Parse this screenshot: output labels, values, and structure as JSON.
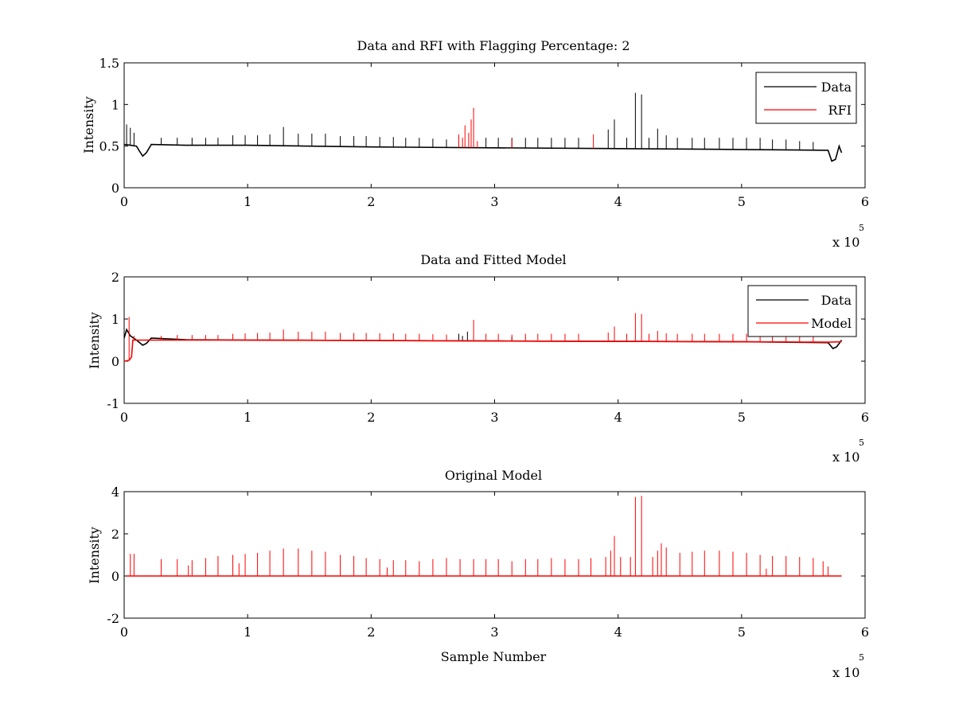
{
  "chart_data": [
    {
      "type": "line",
      "title": "Data and RFI with Flagging Percentage: 2",
      "xlabel": "",
      "ylabel": "Intensity",
      "xlim": [
        0,
        6
      ],
      "ylim": [
        0,
        1.5
      ],
      "x_ticks": [
        "0",
        "1",
        "2",
        "3",
        "4",
        "5",
        "6"
      ],
      "y_ticks": [
        "0",
        "0.5",
        "1",
        "1.5"
      ],
      "x_multiplier": "x 10",
      "x_multiplier_exp": "5",
      "grid": false,
      "legend": "top-right",
      "colors": {
        "Data": "#000000",
        "RFI": "#ff0000"
      },
      "series": [
        {
          "name": "Data",
          "baseline": [
            [
              0,
              0.52
            ],
            [
              0.05,
              0.51
            ],
            [
              0.1,
              0.5
            ],
            [
              0.12,
              0.45
            ],
            [
              0.15,
              0.38
            ],
            [
              0.18,
              0.42
            ],
            [
              0.22,
              0.52
            ],
            [
              0.5,
              0.51
            ],
            [
              1.0,
              0.51
            ],
            [
              2.0,
              0.49
            ],
            [
              3.0,
              0.48
            ],
            [
              4.0,
              0.47
            ],
            [
              5.0,
              0.46
            ],
            [
              5.7,
              0.45
            ],
            [
              5.73,
              0.32
            ],
            [
              5.76,
              0.34
            ],
            [
              5.79,
              0.5
            ],
            [
              5.81,
              0.42
            ]
          ],
          "spikes": [
            [
              0.02,
              0.76
            ],
            [
              0.05,
              0.72
            ],
            [
              0.08,
              0.66
            ],
            [
              0.3,
              0.6
            ],
            [
              0.43,
              0.6
            ],
            [
              0.55,
              0.6
            ],
            [
              0.66,
              0.6
            ],
            [
              0.76,
              0.6
            ],
            [
              0.88,
              0.63
            ],
            [
              0.98,
              0.63
            ],
            [
              1.08,
              0.63
            ],
            [
              1.18,
              0.64
            ],
            [
              1.29,
              0.73
            ],
            [
              1.41,
              0.65
            ],
            [
              1.52,
              0.65
            ],
            [
              1.63,
              0.65
            ],
            [
              1.75,
              0.62
            ],
            [
              1.86,
              0.62
            ],
            [
              1.96,
              0.62
            ],
            [
              2.07,
              0.61
            ],
            [
              2.18,
              0.61
            ],
            [
              2.28,
              0.6
            ],
            [
              2.39,
              0.6
            ],
            [
              2.5,
              0.59
            ],
            [
              2.61,
              0.58
            ],
            [
              2.93,
              0.6
            ],
            [
              3.03,
              0.6
            ],
            [
              3.14,
              0.6
            ],
            [
              3.25,
              0.6
            ],
            [
              3.35,
              0.6
            ],
            [
              3.46,
              0.6
            ],
            [
              3.57,
              0.6
            ],
            [
              3.68,
              0.6
            ],
            [
              3.92,
              0.7
            ],
            [
              3.97,
              0.82
            ],
            [
              4.07,
              0.6
            ],
            [
              4.14,
              1.14
            ],
            [
              4.19,
              1.12
            ],
            [
              4.25,
              0.6
            ],
            [
              4.32,
              0.71
            ],
            [
              4.39,
              0.63
            ],
            [
              4.48,
              0.6
            ],
            [
              4.6,
              0.6
            ],
            [
              4.7,
              0.6
            ],
            [
              4.82,
              0.6
            ],
            [
              4.93,
              0.6
            ],
            [
              5.04,
              0.6
            ],
            [
              5.15,
              0.6
            ],
            [
              5.25,
              0.58
            ],
            [
              5.36,
              0.58
            ],
            [
              5.47,
              0.56
            ],
            [
              5.58,
              0.55
            ]
          ]
        },
        {
          "name": "RFI",
          "spikes": [
            [
              2.71,
              0.64
            ],
            [
              2.74,
              0.6
            ],
            [
              2.76,
              0.75
            ],
            [
              2.79,
              0.66
            ],
            [
              2.81,
              0.82
            ],
            [
              2.83,
              0.96
            ],
            [
              2.86,
              0.56
            ],
            [
              3.14,
              0.58
            ],
            [
              3.8,
              0.64
            ]
          ]
        }
      ]
    },
    {
      "type": "line",
      "title": "Data and Fitted Model",
      "xlabel": "",
      "ylabel": "Intensity",
      "xlim": [
        0,
        6
      ],
      "ylim": [
        -1,
        2
      ],
      "x_ticks": [
        "0",
        "1",
        "2",
        "3",
        "4",
        "5",
        "6"
      ],
      "y_ticks": [
        "-1",
        "0",
        "1",
        "2"
      ],
      "x_multiplier": "x 10",
      "x_multiplier_exp": "5",
      "grid": false,
      "legend": "top-right",
      "colors": {
        "Data": "#000000",
        "Model": "#ff0000"
      },
      "series": [
        {
          "name": "Data",
          "baseline": [
            [
              0,
              0.55
            ],
            [
              0.02,
              0.75
            ],
            [
              0.05,
              0.6
            ],
            [
              0.1,
              0.5
            ],
            [
              0.15,
              0.38
            ],
            [
              0.18,
              0.42
            ],
            [
              0.22,
              0.55
            ],
            [
              0.5,
              0.51
            ],
            [
              1.0,
              0.5
            ],
            [
              2.0,
              0.49
            ],
            [
              3.0,
              0.48
            ],
            [
              4.0,
              0.47
            ],
            [
              5.0,
              0.46
            ],
            [
              5.7,
              0.44
            ],
            [
              5.74,
              0.3
            ],
            [
              5.77,
              0.34
            ],
            [
              5.81,
              0.5
            ]
          ],
          "spikes": [
            [
              2.71,
              0.65
            ],
            [
              2.74,
              0.6
            ],
            [
              2.78,
              0.7
            ],
            [
              3.14,
              0.58
            ]
          ]
        },
        {
          "name": "Model",
          "baseline": [
            [
              0,
              0.0
            ],
            [
              0.04,
              0.02
            ],
            [
              0.06,
              0.1
            ],
            [
              0.07,
              0.5
            ],
            [
              0.2,
              0.5
            ],
            [
              1.0,
              0.5
            ],
            [
              2.0,
              0.49
            ],
            [
              3.0,
              0.48
            ],
            [
              4.0,
              0.47
            ],
            [
              5.0,
              0.46
            ],
            [
              5.7,
              0.45
            ],
            [
              5.81,
              0.46
            ]
          ],
          "spikes": [
            [
              0.04,
              1.05
            ],
            [
              0.08,
              0.6
            ],
            [
              0.3,
              0.6
            ],
            [
              0.43,
              0.62
            ],
            [
              0.55,
              0.62
            ],
            [
              0.66,
              0.62
            ],
            [
              0.76,
              0.62
            ],
            [
              0.88,
              0.65
            ],
            [
              0.98,
              0.66
            ],
            [
              1.08,
              0.67
            ],
            [
              1.18,
              0.68
            ],
            [
              1.29,
              0.75
            ],
            [
              1.41,
              0.7
            ],
            [
              1.52,
              0.7
            ],
            [
              1.63,
              0.7
            ],
            [
              1.75,
              0.67
            ],
            [
              1.86,
              0.67
            ],
            [
              1.96,
              0.67
            ],
            [
              2.07,
              0.66
            ],
            [
              2.18,
              0.66
            ],
            [
              2.28,
              0.65
            ],
            [
              2.39,
              0.65
            ],
            [
              2.5,
              0.64
            ],
            [
              2.61,
              0.63
            ],
            [
              2.83,
              0.98
            ],
            [
              2.93,
              0.65
            ],
            [
              3.03,
              0.65
            ],
            [
              3.14,
              0.63
            ],
            [
              3.25,
              0.65
            ],
            [
              3.35,
              0.65
            ],
            [
              3.46,
              0.65
            ],
            [
              3.57,
              0.65
            ],
            [
              3.68,
              0.65
            ],
            [
              3.92,
              0.68
            ],
            [
              3.97,
              0.82
            ],
            [
              4.07,
              0.65
            ],
            [
              4.14,
              1.14
            ],
            [
              4.19,
              1.12
            ],
            [
              4.25,
              0.65
            ],
            [
              4.32,
              0.72
            ],
            [
              4.39,
              0.66
            ],
            [
              4.48,
              0.65
            ],
            [
              4.6,
              0.65
            ],
            [
              4.7,
              0.65
            ],
            [
              4.82,
              0.65
            ],
            [
              4.93,
              0.65
            ],
            [
              5.04,
              0.65
            ],
            [
              5.15,
              0.63
            ],
            [
              5.25,
              0.62
            ],
            [
              5.36,
              0.62
            ],
            [
              5.47,
              0.6
            ],
            [
              5.58,
              0.58
            ]
          ]
        }
      ]
    },
    {
      "type": "line",
      "title": "Original Model",
      "xlabel": "Sample Number",
      "ylabel": "Intensity",
      "xlim": [
        0,
        6
      ],
      "ylim": [
        -2,
        4
      ],
      "x_ticks": [
        "0",
        "1",
        "2",
        "3",
        "4",
        "5",
        "6"
      ],
      "y_ticks": [
        "-2",
        "0",
        "2",
        "4"
      ],
      "x_multiplier": "x 10",
      "x_multiplier_exp": "5",
      "grid": false,
      "legend": "none",
      "colors": {
        "Model": "#ff0000"
      },
      "series": [
        {
          "baseline": [
            [
              0.02,
              0.0
            ],
            [
              5.81,
              0.0
            ]
          ],
          "spikes": [
            [
              0.05,
              1.05
            ],
            [
              0.08,
              1.05
            ],
            [
              0.3,
              0.8
            ],
            [
              0.43,
              0.8
            ],
            [
              0.52,
              0.5
            ],
            [
              0.55,
              0.75
            ],
            [
              0.66,
              0.85
            ],
            [
              0.76,
              0.95
            ],
            [
              0.88,
              1.0
            ],
            [
              0.93,
              0.6
            ],
            [
              0.98,
              1.05
            ],
            [
              1.08,
              1.1
            ],
            [
              1.18,
              1.2
            ],
            [
              1.29,
              1.3
            ],
            [
              1.41,
              1.3
            ],
            [
              1.52,
              1.2
            ],
            [
              1.63,
              1.15
            ],
            [
              1.75,
              1.0
            ],
            [
              1.86,
              0.95
            ],
            [
              1.96,
              0.85
            ],
            [
              2.07,
              0.8
            ],
            [
              2.13,
              0.4
            ],
            [
              2.18,
              0.75
            ],
            [
              2.28,
              0.75
            ],
            [
              2.39,
              0.7
            ],
            [
              2.5,
              0.8
            ],
            [
              2.61,
              0.85
            ],
            [
              2.72,
              0.8
            ],
            [
              2.83,
              0.8
            ],
            [
              2.93,
              0.8
            ],
            [
              3.03,
              0.8
            ],
            [
              3.14,
              0.7
            ],
            [
              3.25,
              0.8
            ],
            [
              3.35,
              0.8
            ],
            [
              3.46,
              0.85
            ],
            [
              3.57,
              0.8
            ],
            [
              3.68,
              0.8
            ],
            [
              3.78,
              0.85
            ],
            [
              3.9,
              0.9
            ],
            [
              3.94,
              1.2
            ],
            [
              3.97,
              1.9
            ],
            [
              4.02,
              0.9
            ],
            [
              4.1,
              0.9
            ],
            [
              4.14,
              3.75
            ],
            [
              4.19,
              3.8
            ],
            [
              4.28,
              0.9
            ],
            [
              4.32,
              1.2
            ],
            [
              4.35,
              1.55
            ],
            [
              4.39,
              1.35
            ],
            [
              4.5,
              1.1
            ],
            [
              4.6,
              1.15
            ],
            [
              4.7,
              1.2
            ],
            [
              4.82,
              1.2
            ],
            [
              4.93,
              1.15
            ],
            [
              5.04,
              1.1
            ],
            [
              5.15,
              1.0
            ],
            [
              5.2,
              0.35
            ],
            [
              5.25,
              0.95
            ],
            [
              5.36,
              0.95
            ],
            [
              5.47,
              0.9
            ],
            [
              5.58,
              0.85
            ],
            [
              5.66,
              0.7
            ],
            [
              5.7,
              0.45
            ]
          ]
        }
      ]
    }
  ]
}
